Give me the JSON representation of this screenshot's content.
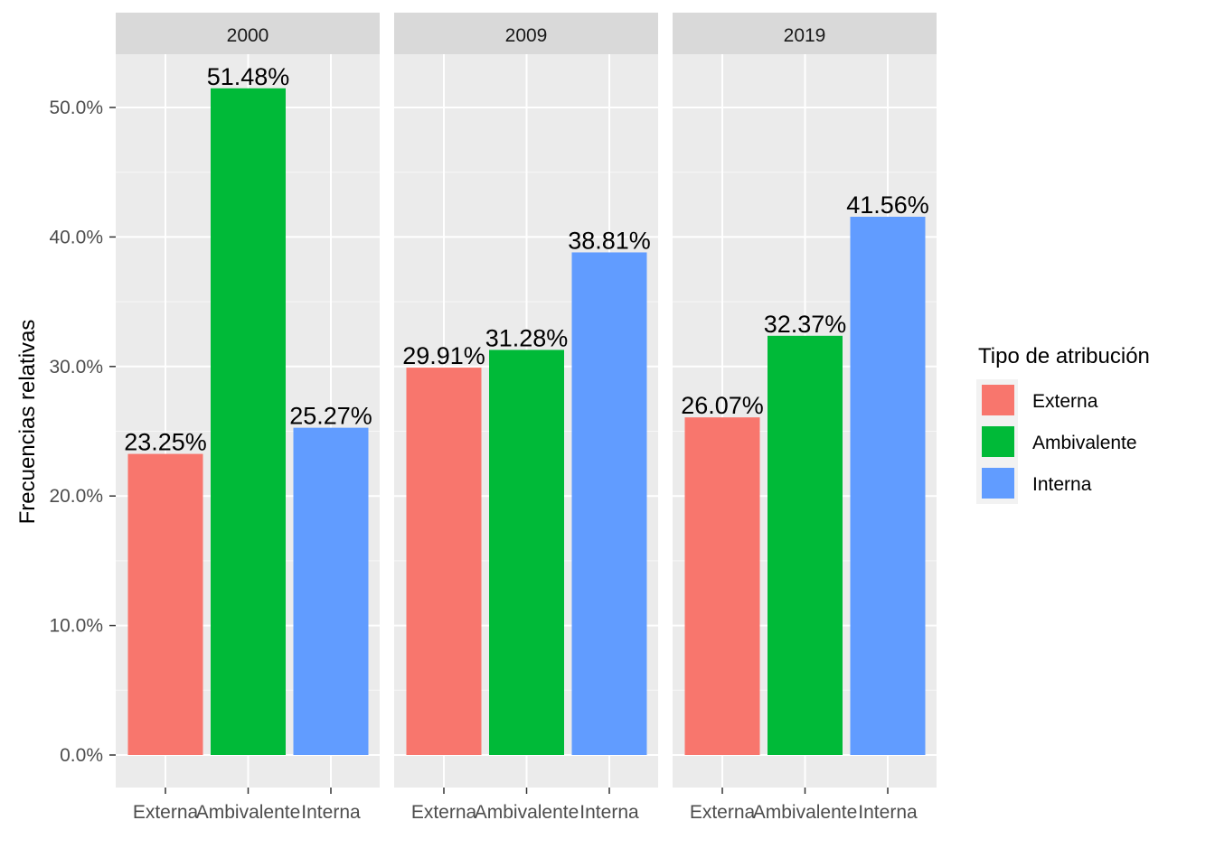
{
  "chart_data": {
    "type": "bar",
    "ylabel": "Frecuencias relativas",
    "xlabel": "",
    "ylim": [
      0,
      55
    ],
    "y_ticks": [
      0,
      10,
      20,
      30,
      40,
      50
    ],
    "y_tick_labels": [
      "0.0%",
      "10.0%",
      "20.0%",
      "30.0%",
      "40.0%",
      "50.0%"
    ],
    "grid": true,
    "legend_position": "right",
    "legend_title": "Tipo de atribución",
    "categories": [
      "Externa",
      "Ambivalente",
      "Interna"
    ],
    "colors": [
      "#F8766D",
      "#00BA38",
      "#619CFF"
    ],
    "panels": [
      {
        "facet": "2000",
        "values": [
          23.25,
          51.48,
          25.27
        ],
        "labels": [
          "23.25%",
          "51.48%",
          "25.27%"
        ]
      },
      {
        "facet": "2009",
        "values": [
          29.91,
          31.28,
          38.81
        ],
        "labels": [
          "29.91%",
          "31.28%",
          "38.81%"
        ]
      },
      {
        "facet": "2019",
        "values": [
          26.07,
          32.37,
          41.56
        ],
        "labels": [
          "26.07%",
          "32.37%",
          "41.56%"
        ]
      }
    ]
  }
}
